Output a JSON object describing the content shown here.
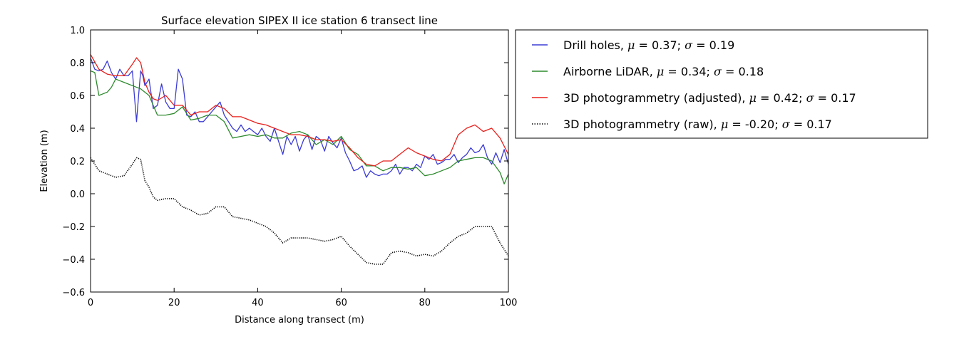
{
  "chart_data": {
    "type": "line",
    "title": "Surface elevation SIPEX II ice station 6 transect line",
    "xlabel": "Distance along transect (m)",
    "ylabel": "Elevation (m)",
    "xlim": [
      0,
      100
    ],
    "ylim": [
      -0.6,
      1.0
    ],
    "xticks": [
      "0",
      "20",
      "40",
      "60",
      "80",
      "100"
    ],
    "yticks": [
      "−0.6",
      "−0.4",
      "−0.2",
      "0.0",
      "0.2",
      "0.4",
      "0.6",
      "0.8",
      "1.0"
    ],
    "grid": false,
    "legend_position": "outside-right-top",
    "series": [
      {
        "name": "drill",
        "legend_plain": "Drill holes, ",
        "legend_mu": "0.37",
        "legend_sigma": "0.19",
        "color": "#3b3bd6",
        "style": "solid",
        "x": [
          0,
          1,
          2,
          3,
          4,
          5,
          6,
          7,
          8,
          9,
          10,
          11,
          11.5,
          12,
          12.5,
          13,
          14,
          15,
          16,
          17,
          18,
          19,
          20,
          21,
          22,
          23,
          24,
          25,
          26,
          27,
          28,
          29,
          30,
          31,
          32,
          33,
          34,
          35,
          36,
          37,
          38,
          39,
          40,
          41,
          42,
          43,
          44,
          45,
          46,
          47,
          48,
          49,
          50,
          51,
          52,
          53,
          54,
          55,
          56,
          57,
          58,
          59,
          60,
          61,
          62,
          63,
          64,
          65,
          66,
          67,
          68,
          69,
          70,
          71,
          72,
          73,
          74,
          75,
          76,
          77,
          78,
          79,
          80,
          81,
          82,
          83,
          84,
          85,
          86,
          87,
          88,
          89,
          90,
          91,
          92,
          93,
          94,
          95,
          96,
          97,
          98,
          99,
          100
        ],
        "y": [
          0.83,
          0.76,
          0.75,
          0.76,
          0.81,
          0.74,
          0.7,
          0.76,
          0.72,
          0.72,
          0.75,
          0.44,
          0.6,
          0.75,
          0.72,
          0.66,
          0.7,
          0.52,
          0.54,
          0.67,
          0.56,
          0.52,
          0.52,
          0.76,
          0.7,
          0.48,
          0.47,
          0.5,
          0.44,
          0.44,
          0.47,
          0.5,
          0.53,
          0.56,
          0.48,
          0.44,
          0.4,
          0.38,
          0.42,
          0.38,
          0.4,
          0.38,
          0.36,
          0.4,
          0.35,
          0.32,
          0.4,
          0.32,
          0.24,
          0.35,
          0.3,
          0.35,
          0.26,
          0.33,
          0.36,
          0.27,
          0.35,
          0.33,
          0.26,
          0.35,
          0.31,
          0.28,
          0.34,
          0.25,
          0.2,
          0.14,
          0.15,
          0.17,
          0.1,
          0.14,
          0.12,
          0.11,
          0.12,
          0.12,
          0.14,
          0.18,
          0.12,
          0.16,
          0.16,
          0.14,
          0.18,
          0.16,
          0.23,
          0.21,
          0.24,
          0.18,
          0.19,
          0.21,
          0.21,
          0.24,
          0.19,
          0.22,
          0.24,
          0.28,
          0.25,
          0.26,
          0.3,
          0.22,
          0.18,
          0.25,
          0.19,
          0.27,
          0.18
        ]
      },
      {
        "name": "lidar",
        "legend_plain": "Airborne LiDAR, ",
        "legend_mu": "0.34",
        "legend_sigma": "0.18",
        "color": "#2d8a2d",
        "style": "solid",
        "x": [
          0,
          1,
          2,
          3,
          4,
          5,
          6,
          7,
          8,
          10,
          12,
          14,
          16,
          18,
          20,
          22,
          24,
          26,
          28,
          30,
          32,
          34,
          36,
          38,
          40,
          42,
          44,
          46,
          48,
          50,
          52,
          54,
          56,
          58,
          60,
          62,
          64,
          66,
          68,
          70,
          72,
          74,
          76,
          78,
          80,
          82,
          84,
          86,
          88,
          90,
          92,
          94,
          96,
          98,
          99,
          100
        ],
        "y": [
          0.75,
          0.74,
          0.6,
          0.61,
          0.62,
          0.65,
          0.7,
          0.69,
          0.68,
          0.66,
          0.64,
          0.6,
          0.48,
          0.48,
          0.49,
          0.53,
          0.45,
          0.46,
          0.48,
          0.48,
          0.44,
          0.34,
          0.35,
          0.36,
          0.35,
          0.36,
          0.34,
          0.34,
          0.37,
          0.38,
          0.36,
          0.3,
          0.33,
          0.3,
          0.35,
          0.27,
          0.24,
          0.17,
          0.17,
          0.14,
          0.16,
          0.16,
          0.15,
          0.16,
          0.11,
          0.12,
          0.14,
          0.16,
          0.2,
          0.21,
          0.22,
          0.22,
          0.2,
          0.13,
          0.06,
          0.12
        ]
      },
      {
        "name": "photogrammetry-adjusted",
        "legend_plain": "3D photogrammetry (adjusted), ",
        "legend_mu": "0.42",
        "legend_sigma": "0.17",
        "color": "#e8201c",
        "style": "solid",
        "x": [
          0,
          2,
          4,
          6,
          8,
          10,
          11,
          12,
          13,
          14,
          15,
          16,
          18,
          20,
          22,
          24,
          26,
          28,
          30,
          32,
          34,
          36,
          38,
          40,
          42,
          44,
          46,
          48,
          50,
          52,
          54,
          56,
          58,
          60,
          62,
          64,
          66,
          68,
          70,
          72,
          74,
          76,
          78,
          80,
          82,
          84,
          86,
          88,
          90,
          92,
          94,
          96,
          98,
          100
        ],
        "y": [
          0.85,
          0.76,
          0.73,
          0.72,
          0.72,
          0.79,
          0.83,
          0.8,
          0.68,
          0.62,
          0.58,
          0.57,
          0.6,
          0.54,
          0.54,
          0.48,
          0.5,
          0.5,
          0.54,
          0.52,
          0.47,
          0.47,
          0.45,
          0.43,
          0.42,
          0.4,
          0.38,
          0.36,
          0.36,
          0.35,
          0.33,
          0.33,
          0.32,
          0.33,
          0.28,
          0.22,
          0.18,
          0.17,
          0.2,
          0.2,
          0.24,
          0.28,
          0.25,
          0.23,
          0.21,
          0.2,
          0.24,
          0.36,
          0.4,
          0.42,
          0.38,
          0.4,
          0.34,
          0.24
        ]
      },
      {
        "name": "photogrammetry-raw",
        "legend_plain": "3D photogrammetry (raw), ",
        "legend_mu": "-0.20",
        "legend_sigma": "0.17",
        "color": "#000000",
        "style": "dotted",
        "x": [
          0,
          2,
          4,
          6,
          8,
          10,
          11,
          12,
          13,
          14,
          15,
          16,
          18,
          20,
          22,
          24,
          26,
          28,
          30,
          32,
          34,
          36,
          38,
          40,
          42,
          44,
          46,
          48,
          50,
          52,
          54,
          56,
          58,
          60,
          62,
          64,
          66,
          68,
          70,
          72,
          74,
          76,
          78,
          80,
          82,
          84,
          86,
          88,
          90,
          92,
          94,
          96,
          98,
          100
        ],
        "y": [
          0.22,
          0.14,
          0.12,
          0.1,
          0.11,
          0.18,
          0.22,
          0.21,
          0.08,
          0.04,
          -0.02,
          -0.04,
          -0.03,
          -0.03,
          -0.08,
          -0.1,
          -0.13,
          -0.12,
          -0.08,
          -0.08,
          -0.14,
          -0.15,
          -0.16,
          -0.18,
          -0.2,
          -0.24,
          -0.3,
          -0.27,
          -0.27,
          -0.27,
          -0.28,
          -0.29,
          -0.28,
          -0.26,
          -0.32,
          -0.37,
          -0.42,
          -0.43,
          -0.43,
          -0.36,
          -0.35,
          -0.36,
          -0.38,
          -0.37,
          -0.38,
          -0.35,
          -0.3,
          -0.26,
          -0.24,
          -0.2,
          -0.2,
          -0.2,
          -0.3,
          -0.38
        ]
      }
    ]
  }
}
